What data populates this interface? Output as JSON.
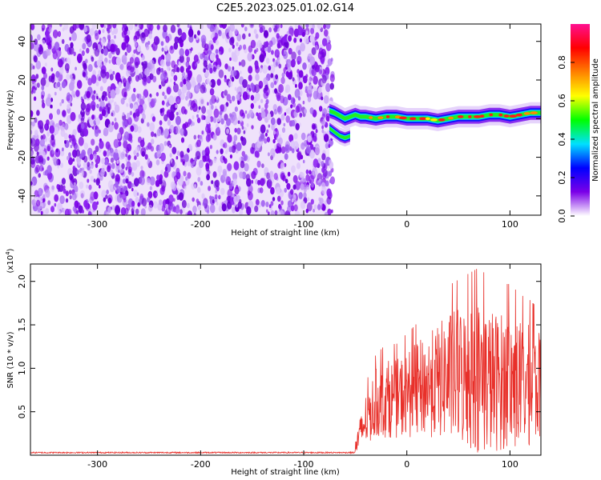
{
  "title": "C2E5.2023.025.01.02.G14",
  "chart_data": [
    {
      "type": "heatmap",
      "name": "spectrogram",
      "xlabel": "Height of straight line (km)",
      "ylabel": "Frequency (Hz)",
      "xlim": [
        -365,
        130
      ],
      "ylim": [
        -50,
        49
      ],
      "xticks": [
        -300,
        -200,
        -100,
        0,
        100
      ],
      "yticks": [
        -40,
        -20,
        0,
        20,
        40
      ],
      "noise_region_x": [
        -365,
        -75
      ],
      "signal_trace": {
        "x": [
          -75,
          -70,
          -60,
          -50,
          -45,
          -40,
          -30,
          -20,
          -10,
          0,
          10,
          20,
          30,
          40,
          50,
          60,
          70,
          80,
          90,
          100,
          110,
          120,
          130
        ],
        "freq": [
          4,
          3,
          0,
          2,
          1,
          1,
          0,
          1,
          1,
          0,
          0,
          0,
          -1,
          0,
          1,
          1,
          1,
          2,
          2,
          1,
          2,
          3,
          3
        ],
        "lower_branch_x": [
          -75,
          -70,
          -65,
          -60,
          -55
        ],
        "lower_branch_freq": [
          -5,
          -7,
          -9,
          -10,
          -9
        ]
      },
      "colorbar": {
        "label": "Normalized spectral amplitude",
        "ticks": [
          "0.0",
          "0.2",
          "0.4",
          "0.6",
          "0.8"
        ],
        "range": [
          0,
          1
        ],
        "colors": [
          "#ffffff",
          "#7b00e8",
          "#0000ff",
          "#00e0ff",
          "#00ff00",
          "#ffff00",
          "#ff8000",
          "#ff0000",
          "#ff1090"
        ]
      }
    },
    {
      "type": "line",
      "name": "snr",
      "xlabel": "Height of straight line (km)",
      "ylabel": "SNR (10 * v/v)",
      "scale_label": "(x10",
      "scale_exp": "4",
      "xlim": [
        -365,
        130
      ],
      "ylim": [
        0,
        2.2
      ],
      "xticks": [
        -300,
        -200,
        -100,
        0,
        100
      ],
      "yticks": [
        "0.5",
        "1.0",
        "1.5",
        "2.0"
      ],
      "color": "#e8302a",
      "baseline_value": 0.03,
      "onset_x": -50,
      "envelope": {
        "x": [
          -50,
          -40,
          -30,
          -20,
          -10,
          0,
          10,
          20,
          30,
          40,
          50,
          60,
          70,
          80,
          90,
          100,
          110,
          120,
          130
        ],
        "mean": [
          0.1,
          0.4,
          0.6,
          0.65,
          0.65,
          0.7,
          0.75,
          0.8,
          0.85,
          0.9,
          0.9,
          0.9,
          0.9,
          0.85,
          0.85,
          0.85,
          0.8,
          0.8,
          0.8
        ],
        "amp": [
          0.1,
          0.3,
          0.4,
          0.45,
          0.45,
          0.5,
          0.55,
          0.6,
          0.65,
          0.75,
          0.8,
          0.85,
          0.9,
          0.85,
          0.8,
          0.8,
          0.75,
          0.7,
          0.6
        ]
      }
    }
  ]
}
